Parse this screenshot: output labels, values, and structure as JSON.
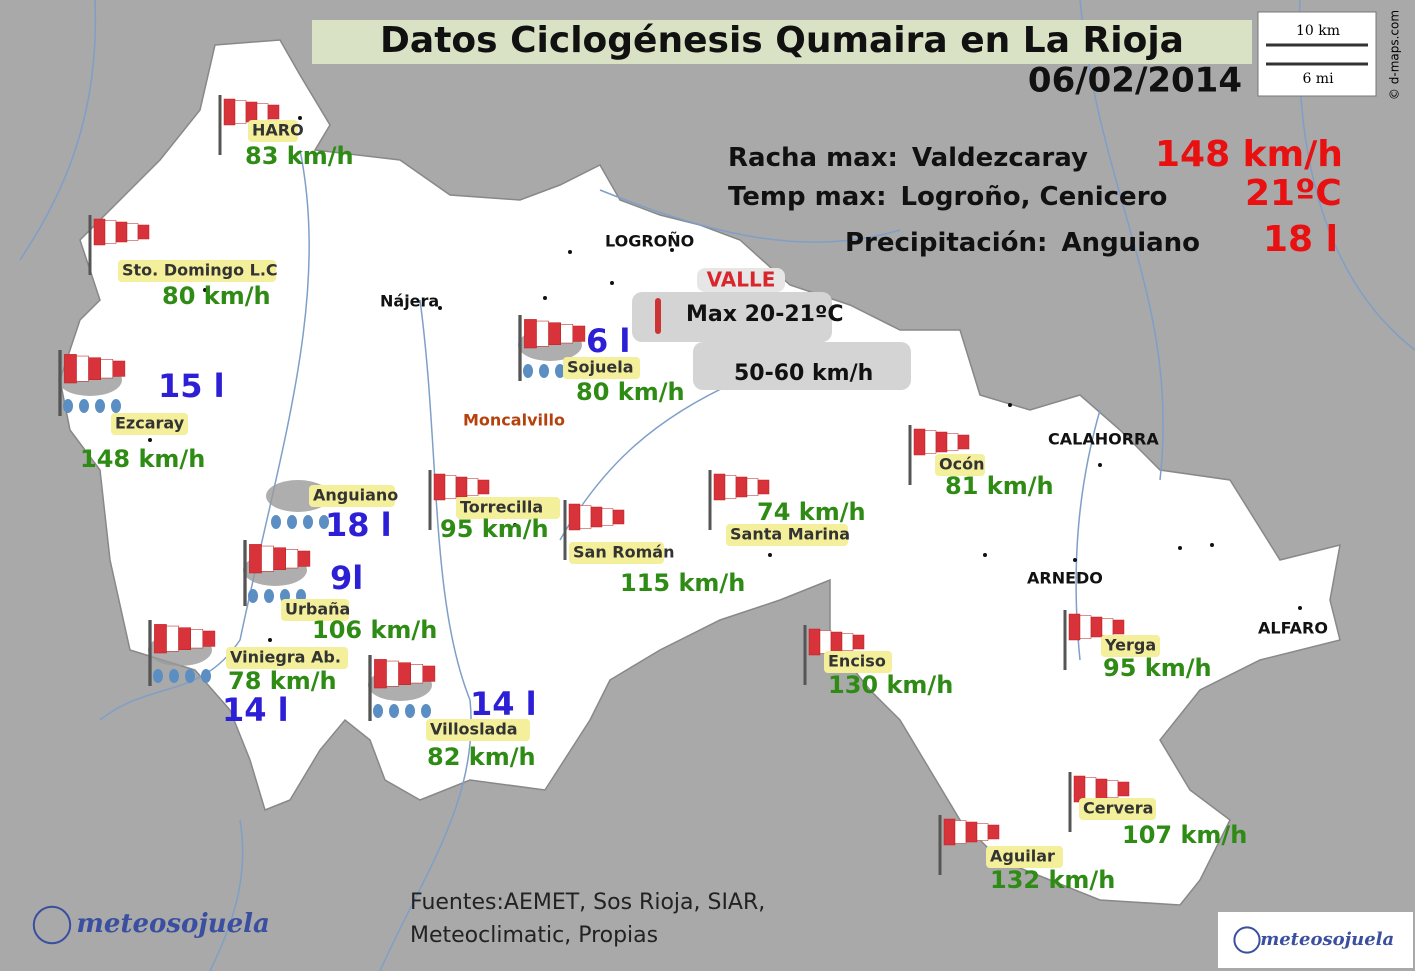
{
  "header": {
    "title": "Datos Ciclogénesis Qumaira en La Rioja",
    "date": "06/02/2014"
  },
  "summary": [
    {
      "label": "Racha max:",
      "place": "Valdezcaray",
      "value": "148 km/h"
    },
    {
      "label": "Temp max:",
      "place": "Logroño, Cenicero",
      "value": "21ºC"
    },
    {
      "label": "Precipitación:",
      "place": "Anguiano",
      "value": "18 l"
    }
  ],
  "scale": {
    "km": "10 km",
    "mi": "6 mi"
  },
  "credit": "© d-maps.com",
  "towns": [
    "LOGROÑO",
    "Nájera",
    "CALAHORRA",
    "ARNEDO",
    "ALFARO",
    "Moncalvillo"
  ],
  "valle": {
    "label": "VALLE",
    "temp": "Max 20-21ºC",
    "wind": "50-60 km/h"
  },
  "stations": [
    {
      "name": "HARO",
      "wind": "83 km/h"
    },
    {
      "name": "Sto. Domingo L.C",
      "wind": "80 km/h"
    },
    {
      "name": "Ezcaray",
      "wind": "148 km/h",
      "precip": "15 l"
    },
    {
      "name": "Anguiano",
      "precip": "18 l"
    },
    {
      "name": "Sojuela",
      "wind": "80 km/h",
      "precip": "6 l"
    },
    {
      "name": "Torrecilla",
      "wind": "95 km/h"
    },
    {
      "name": "San Román",
      "wind": "115 km/h"
    },
    {
      "name": "Santa Marina",
      "wind": "74 km/h"
    },
    {
      "name": "Ocón",
      "wind": "81 km/h"
    },
    {
      "name": "Urbaña",
      "wind": "106 km/h",
      "precip": "9l"
    },
    {
      "name": "Viniegra Ab.",
      "wind": "78 km/h",
      "precip": "14 l"
    },
    {
      "name": "Villoslada",
      "wind": "82 km/h",
      "precip": "14 l"
    },
    {
      "name": "Enciso",
      "wind": "130 km/h"
    },
    {
      "name": "Yerga",
      "wind": "95 km/h"
    },
    {
      "name": "Cervera",
      "wind": "107 km/h"
    },
    {
      "name": "Aguilar",
      "wind": "132 km/h"
    }
  ],
  "sources": [
    "Fuentes:AEMET, Sos Rioja, SIAR,",
    "Meteoclimatic, Propias"
  ],
  "logo": "meteosojuela"
}
